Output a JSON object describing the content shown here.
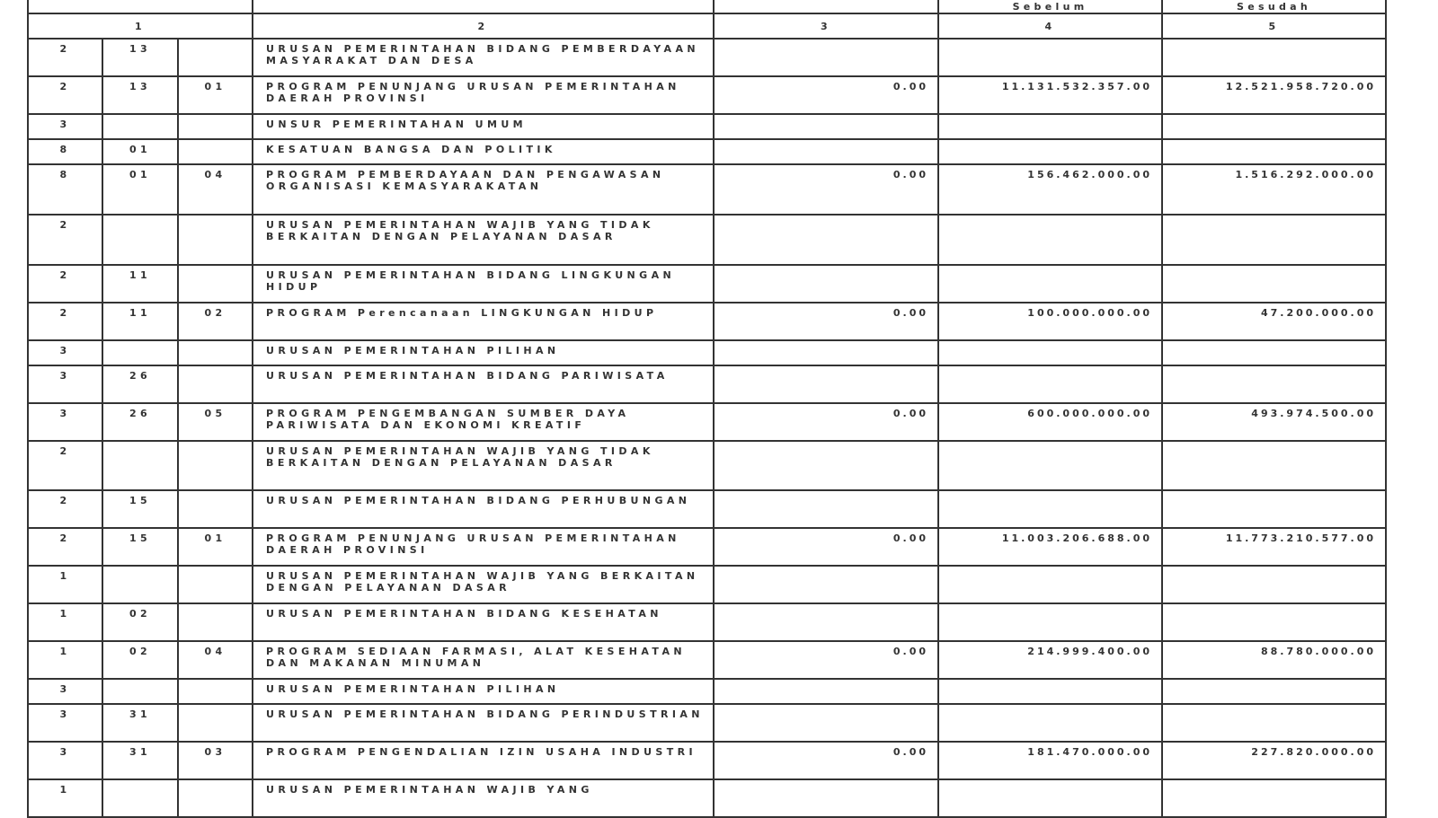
{
  "header": {
    "col4": "Sebelum",
    "col5": "Sesudah",
    "numbers": [
      "1",
      "2",
      "3",
      "4",
      "5"
    ]
  },
  "rows": [
    {
      "a": "2",
      "b": "13",
      "c": "",
      "text": "URUSAN PEMERINTAHAN BIDANG PEMBERDAYAAN MASYARAKAT DAN DESA",
      "v3": "",
      "v4": "",
      "v5": ""
    },
    {
      "a": "2",
      "b": "13",
      "c": "01",
      "text": "PROGRAM PENUNJANG URUSAN PEMERINTAHAN DAERAH PROVINSI",
      "v3": "0.00",
      "v4": "11.131.532.357.00",
      "v5": "12.521.958.720.00"
    },
    {
      "a": "3",
      "b": "",
      "c": "",
      "text": "UNSUR PEMERINTAHAN UMUM",
      "v3": "",
      "v4": "",
      "v5": ""
    },
    {
      "a": "8",
      "b": "01",
      "c": "",
      "text": "KESATUAN BANGSA DAN POLITIK",
      "v3": "",
      "v4": "",
      "v5": ""
    },
    {
      "a": "8",
      "b": "01",
      "c": "04",
      "text": "PROGRAM PEMBERDAYAAN DAN PENGAWASAN ORGANISASI KEMASYARAKATAN",
      "v3": "0.00",
      "v4": "156.462.000.00",
      "v5": "1.516.292.000.00"
    },
    {
      "a": "2",
      "b": "",
      "c": "",
      "text": "URUSAN PEMERINTAHAN WAJIB YANG TIDAK BERKAITAN DENGAN PELAYANAN DASAR",
      "v3": "",
      "v4": "",
      "v5": ""
    },
    {
      "a": "2",
      "b": "11",
      "c": "",
      "text": "URUSAN PEMERINTAHAN BIDANG LINGKUNGAN HIDUP",
      "v3": "",
      "v4": "",
      "v5": ""
    },
    {
      "a": "2",
      "b": "11",
      "c": "02",
      "text": "PROGRAM Perencanaan LINGKUNGAN HIDUP",
      "v3": "0.00",
      "v4": "100.000.000.00",
      "v5": "47.200.000.00"
    },
    {
      "a": "3",
      "b": "",
      "c": "",
      "text": "URUSAN PEMERINTAHAN PILIHAN",
      "v3": "",
      "v4": "",
      "v5": ""
    },
    {
      "a": "3",
      "b": "26",
      "c": "",
      "text": "URUSAN PEMERINTAHAN BIDANG PARIWISATA",
      "v3": "",
      "v4": "",
      "v5": ""
    },
    {
      "a": "3",
      "b": "26",
      "c": "05",
      "text": "PROGRAM PENGEMBANGAN SUMBER DAYA PARIWISATA DAN EKONOMI KREATIF",
      "v3": "0.00",
      "v4": "600.000.000.00",
      "v5": "493.974.500.00"
    },
    {
      "a": "2",
      "b": "",
      "c": "",
      "text": "URUSAN PEMERINTAHAN WAJIB YANG TIDAK BERKAITAN DENGAN PELAYANAN DASAR",
      "v3": "",
      "v4": "",
      "v5": ""
    },
    {
      "a": "2",
      "b": "15",
      "c": "",
      "text": "URUSAN PEMERINTAHAN BIDANG PERHUBUNGAN",
      "v3": "",
      "v4": "",
      "v5": ""
    },
    {
      "a": "2",
      "b": "15",
      "c": "01",
      "text": "PROGRAM PENUNJANG URUSAN PEMERINTAHAN DAERAH PROVINSI",
      "v3": "0.00",
      "v4": "11.003.206.688.00",
      "v5": "11.773.210.577.00"
    },
    {
      "a": "1",
      "b": "",
      "c": "",
      "text": "URUSAN PEMERINTAHAN WAJIB YANG BERKAITAN DENGAN PELAYANAN DASAR",
      "v3": "",
      "v4": "",
      "v5": ""
    },
    {
      "a": "1",
      "b": "02",
      "c": "",
      "text": "URUSAN PEMERINTAHAN BIDANG KESEHATAN",
      "v3": "",
      "v4": "",
      "v5": ""
    },
    {
      "a": "1",
      "b": "02",
      "c": "04",
      "text": "PROGRAM SEDIAAN FARMASI, ALAT KESEHATAN DAN MAKANAN MINUMAN",
      "v3": "0.00",
      "v4": "214.999.400.00",
      "v5": "88.780.000.00"
    },
    {
      "a": "3",
      "b": "",
      "c": "",
      "text": "URUSAN PEMERINTAHAN PILIHAN",
      "v3": "",
      "v4": "",
      "v5": ""
    },
    {
      "a": "3",
      "b": "31",
      "c": "",
      "text": "URUSAN PEMERINTAHAN BIDANG PERINDUSTRIAN",
      "v3": "",
      "v4": "",
      "v5": ""
    },
    {
      "a": "3",
      "b": "31",
      "c": "03",
      "text": "PROGRAM PENGENDALIAN IZIN USAHA INDUSTRI",
      "v3": "0.00",
      "v4": "181.470.000.00",
      "v5": "227.820.000.00"
    },
    {
      "a": "1",
      "b": "",
      "c": "",
      "text": "URUSAN PEMERINTAHAN WAJIB YANG",
      "v3": "",
      "v4": "",
      "v5": ""
    }
  ]
}
